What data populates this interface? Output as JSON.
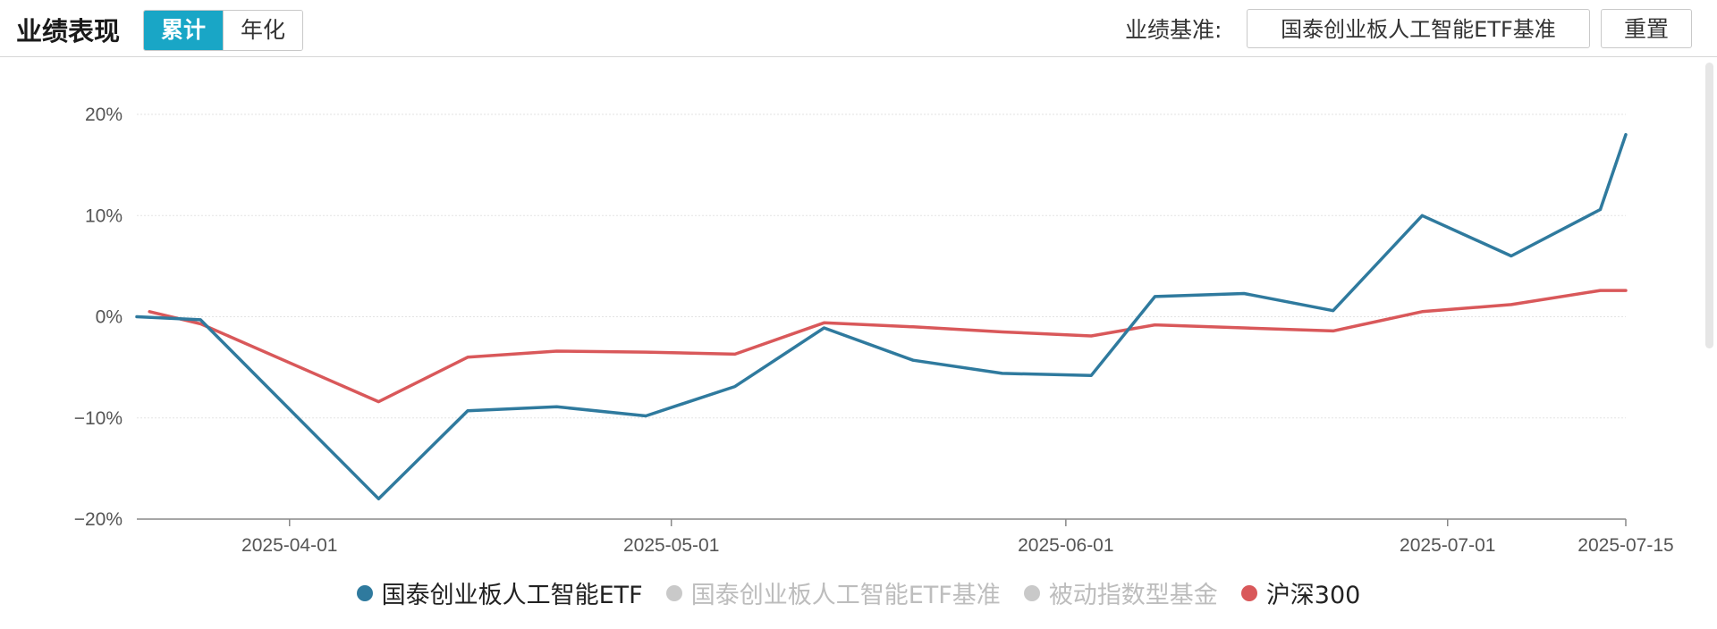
{
  "header": {
    "title": "业绩表现",
    "toggle": {
      "cumulative": "累计",
      "annualized": "年化",
      "active": "cumulative"
    },
    "benchmark_label": "业绩基准:",
    "benchmark_value": "国泰创业板人工智能ETF基准",
    "reset_label": "重置"
  },
  "colors": {
    "accent": "#19a6c6",
    "fund": "#2f7a9e",
    "index": "#d9585a",
    "inactive": "#c9c9c9"
  },
  "chart_data": {
    "type": "line",
    "y_ticks": [
      "20%",
      "10%",
      "0%",
      "−10%",
      "−20%"
    ],
    "x_ticks": [
      "2025-04-01",
      "2025-05-01",
      "2025-06-01",
      "2025-07-01",
      "2025-07-15"
    ],
    "ylim": [
      -20,
      20
    ],
    "xlim": [
      "2025-03-20",
      "2025-07-15"
    ],
    "grid": true,
    "legend_position": "bottom",
    "series": [
      {
        "name": "国泰创业板人工智能ETF",
        "active": true,
        "color": "#2f7a9e",
        "x": [
          "2025-03-20",
          "2025-03-25",
          "2025-04-08",
          "2025-04-15",
          "2025-04-22",
          "2025-04-29",
          "2025-05-06",
          "2025-05-13",
          "2025-05-20",
          "2025-05-27",
          "2025-06-03",
          "2025-06-08",
          "2025-06-15",
          "2025-06-22",
          "2025-06-29",
          "2025-07-06",
          "2025-07-13",
          "2025-07-15"
        ],
        "values": [
          0.0,
          -0.3,
          -18.0,
          -9.3,
          -8.9,
          -9.8,
          -6.9,
          -1.1,
          -4.3,
          -5.6,
          -5.8,
          2.0,
          2.3,
          0.6,
          10.0,
          6.0,
          10.6,
          18.0
        ]
      },
      {
        "name": "国泰创业板人工智能ETF基准",
        "active": false,
        "color": "#c9c9c9"
      },
      {
        "name": "被动指数型基金",
        "active": false,
        "color": "#c9c9c9"
      },
      {
        "name": "沪深300",
        "active": true,
        "color": "#d9585a",
        "x": [
          "2025-03-21",
          "2025-03-25",
          "2025-04-08",
          "2025-04-15",
          "2025-04-22",
          "2025-04-29",
          "2025-05-06",
          "2025-05-13",
          "2025-05-20",
          "2025-05-27",
          "2025-06-03",
          "2025-06-08",
          "2025-06-15",
          "2025-06-22",
          "2025-06-29",
          "2025-07-06",
          "2025-07-13",
          "2025-07-15"
        ],
        "values": [
          0.5,
          -0.7,
          -8.4,
          -4.0,
          -3.4,
          -3.5,
          -3.7,
          -0.6,
          -1.0,
          -1.5,
          -1.9,
          -0.8,
          -1.1,
          -1.4,
          0.5,
          1.2,
          2.6,
          2.6
        ]
      }
    ]
  }
}
